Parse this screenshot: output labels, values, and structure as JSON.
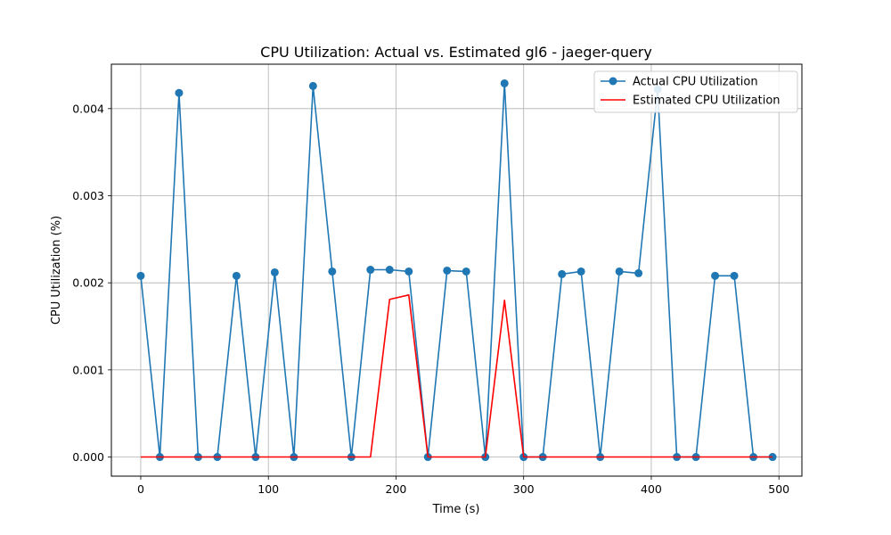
{
  "chart_data": {
    "type": "line",
    "title": "CPU Utilization: Actual vs. Estimated gl6 - jaeger-query",
    "xlabel": "Time (s)",
    "ylabel": "CPU Utilization (%)",
    "xlim": [
      -23,
      518
    ],
    "ylim": [
      -0.00022,
      0.00451
    ],
    "xticks": [
      0,
      100,
      200,
      300,
      400,
      500
    ],
    "yticks": [
      0.0,
      0.001,
      0.002,
      0.003,
      0.004
    ],
    "ytick_labels": [
      "0.000",
      "0.001",
      "0.002",
      "0.003",
      "0.004"
    ],
    "grid": true,
    "legend_position": "top-right",
    "series": [
      {
        "name": "Actual CPU Utilization",
        "color": "#1f77b4",
        "marker": "circle",
        "x": [
          0,
          15,
          30,
          45,
          60,
          75,
          90,
          105,
          120,
          135,
          150,
          165,
          180,
          195,
          210,
          225,
          240,
          255,
          270,
          285,
          300,
          315,
          330,
          345,
          360,
          375,
          390,
          405,
          420,
          435,
          450,
          465,
          480,
          495
        ],
        "y": [
          0.00208,
          0.0,
          0.00418,
          0.0,
          0.0,
          0.00208,
          0.0,
          0.00212,
          0.0,
          0.00426,
          0.00213,
          0.0,
          0.00215,
          0.00215,
          0.00213,
          0.0,
          0.00214,
          0.00213,
          0.0,
          0.00429,
          0.0,
          0.0,
          0.0021,
          0.00213,
          0.0,
          0.00213,
          0.00211,
          0.00422,
          0.0,
          0.0,
          0.00208,
          0.00208,
          0.0,
          0.0
        ]
      },
      {
        "name": "Estimated CPU Utilization",
        "color": "#ff0000",
        "marker": "none",
        "x": [
          0,
          15,
          30,
          45,
          60,
          75,
          90,
          105,
          120,
          135,
          150,
          165,
          180,
          195,
          210,
          225,
          240,
          255,
          270,
          285,
          300,
          315,
          330,
          345,
          360,
          375,
          390,
          405,
          420,
          435,
          450,
          465,
          480,
          495
        ],
        "y": [
          0,
          0,
          0,
          0,
          0,
          0,
          0,
          0,
          0,
          0,
          0,
          0,
          0,
          0.00181,
          0.00186,
          0,
          0,
          0,
          0,
          0.0018,
          0,
          0,
          0,
          0,
          0,
          0,
          0,
          0,
          0,
          0,
          0,
          0,
          0,
          0
        ]
      }
    ]
  }
}
